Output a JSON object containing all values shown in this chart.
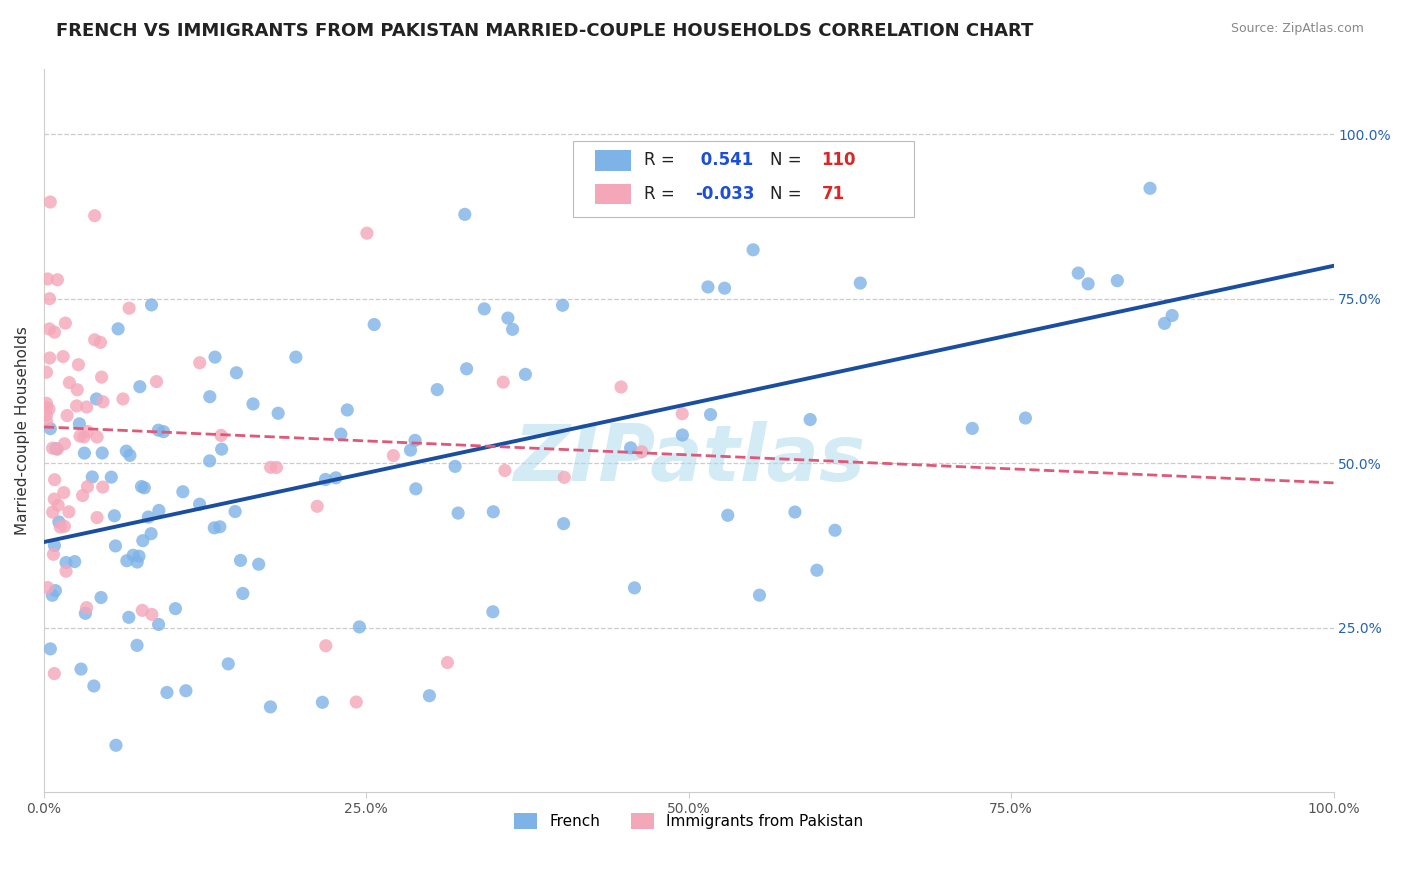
{
  "title": "FRENCH VS IMMIGRANTS FROM PAKISTAN MARRIED-COUPLE HOUSEHOLDS CORRELATION CHART",
  "source": "Source: ZipAtlas.com",
  "ylabel": "Married-couple Households",
  "right_ytick_labels": [
    "25.0%",
    "50.0%",
    "75.0%",
    "100.0%"
  ],
  "right_ytick_positions": [
    0.25,
    0.5,
    0.75,
    1.0
  ],
  "xtick_labels": [
    "0.0%",
    "25.0%",
    "50.0%",
    "75.0%",
    "100.0%"
  ],
  "xtick_positions": [
    0.0,
    0.25,
    0.5,
    0.75,
    1.0
  ],
  "xlim": [
    0.0,
    1.0
  ],
  "ylim": [
    0.0,
    1.1
  ],
  "blue_R": 0.541,
  "blue_N": 110,
  "pink_R": -0.033,
  "pink_N": 71,
  "blue_color": "#7EB3E8",
  "pink_color": "#F4A7B9",
  "blue_line_color": "#1A4FA0",
  "pink_line_color": "#E05878",
  "watermark": "ZIPatlas",
  "watermark_color": "#A8D8EA",
  "legend_R_color": "#1D4ED8",
  "legend_N_color": "#DC2626",
  "background_color": "#FFFFFF",
  "grid_color": "#CCCCCC",
  "title_fontsize": 13,
  "axis_label_fontsize": 11,
  "tick_fontsize": 10,
  "blue_trend_x0": 0.0,
  "blue_trend_y0": 0.38,
  "blue_trend_x1": 1.0,
  "blue_trend_y1": 0.8,
  "pink_trend_x0": 0.0,
  "pink_trend_y0": 0.555,
  "pink_trend_x1": 1.0,
  "pink_trend_y1": 0.47
}
